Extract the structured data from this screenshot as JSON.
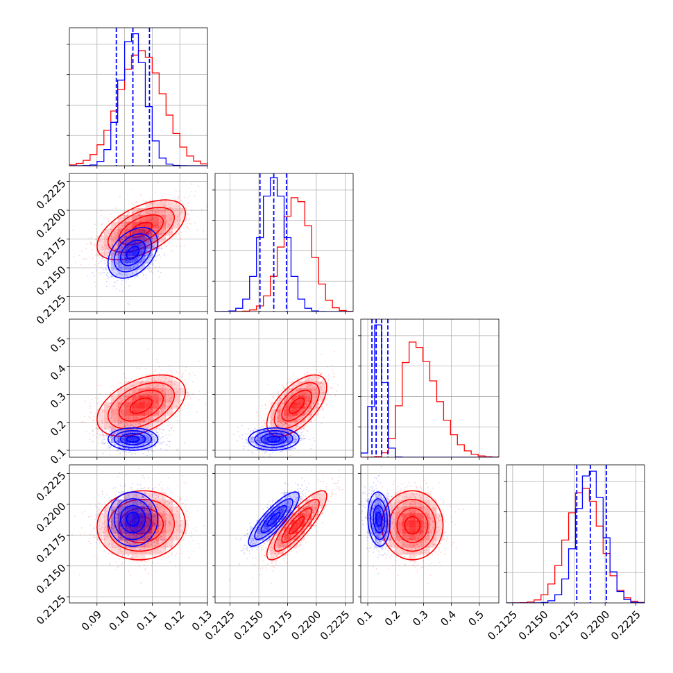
{
  "chart_data": {
    "type": "corner",
    "parameters": 4,
    "grid": true,
    "colors": {
      "series_a": "#ff0000",
      "series_b": "#0000ff",
      "quantile_lines": "#0000ff"
    },
    "series": [
      {
        "color": "#ff0000",
        "means": [
          0.106,
          0.2183,
          0.26,
          0.2183
        ],
        "stds": [
          0.008,
          0.0013,
          0.055,
          0.0014
        ],
        "correlation": [
          [
            1,
            0.55,
            0.45,
            0.05
          ],
          [
            0.55,
            1,
            0.6,
            0.85
          ],
          [
            0.45,
            0.6,
            1,
            0.0
          ],
          [
            0.05,
            0.85,
            0.0,
            1
          ]
        ]
      },
      {
        "color": "#0000ff",
        "means": [
          0.103,
          0.2163,
          0.14,
          0.2188
        ],
        "stds": [
          0.0045,
          0.0011,
          0.02,
          0.0011
        ],
        "correlation": [
          [
            1,
            0.4,
            0.0,
            0.0
          ],
          [
            0.4,
            1,
            0.05,
            0.85
          ],
          [
            0.0,
            0.05,
            1,
            -0.1
          ],
          [
            0.0,
            0.85,
            -0.1,
            1
          ]
        ]
      }
    ],
    "quantile_lines": [
      [
        0.097,
        0.103,
        0.109
      ],
      [
        0.2151,
        0.2163,
        0.2174
      ],
      [
        0.115,
        0.13,
        0.15,
        0.172
      ],
      [
        0.2177,
        0.2188,
        0.2201
      ]
    ],
    "axes": [
      {
        "range": [
          0.08,
          0.13
        ],
        "ticks": [
          0.09,
          0.1,
          0.11,
          0.12,
          0.13
        ],
        "tick_labels": [
          "0.09",
          "0.10",
          "0.11",
          "0.12",
          "0.13"
        ]
      },
      {
        "range": [
          0.2112,
          0.2232
        ],
        "ticks": [
          0.2125,
          0.215,
          0.2175,
          0.22,
          0.2225
        ],
        "tick_labels": [
          "0.2125",
          "0.2150",
          "0.2175",
          "0.2200",
          "0.2225"
        ]
      },
      {
        "range": [
          0.075,
          0.57
        ],
        "ticks": [
          0.1,
          0.2,
          0.3,
          0.4,
          0.5
        ],
        "tick_labels": [
          "0.1",
          "0.2",
          "0.3",
          "0.4",
          "0.5"
        ]
      },
      {
        "range": [
          0.212,
          0.2232
        ],
        "ticks": [
          0.2125,
          0.215,
          0.2175,
          0.22,
          0.2225
        ],
        "tick_labels": [
          "0.2125",
          "0.2150",
          "0.2175",
          "0.2200",
          "0.2225"
        ]
      }
    ],
    "histograms": {
      "bins": 20,
      "series_a_peak": 0.86,
      "series_b_peak": 1.0
    }
  }
}
